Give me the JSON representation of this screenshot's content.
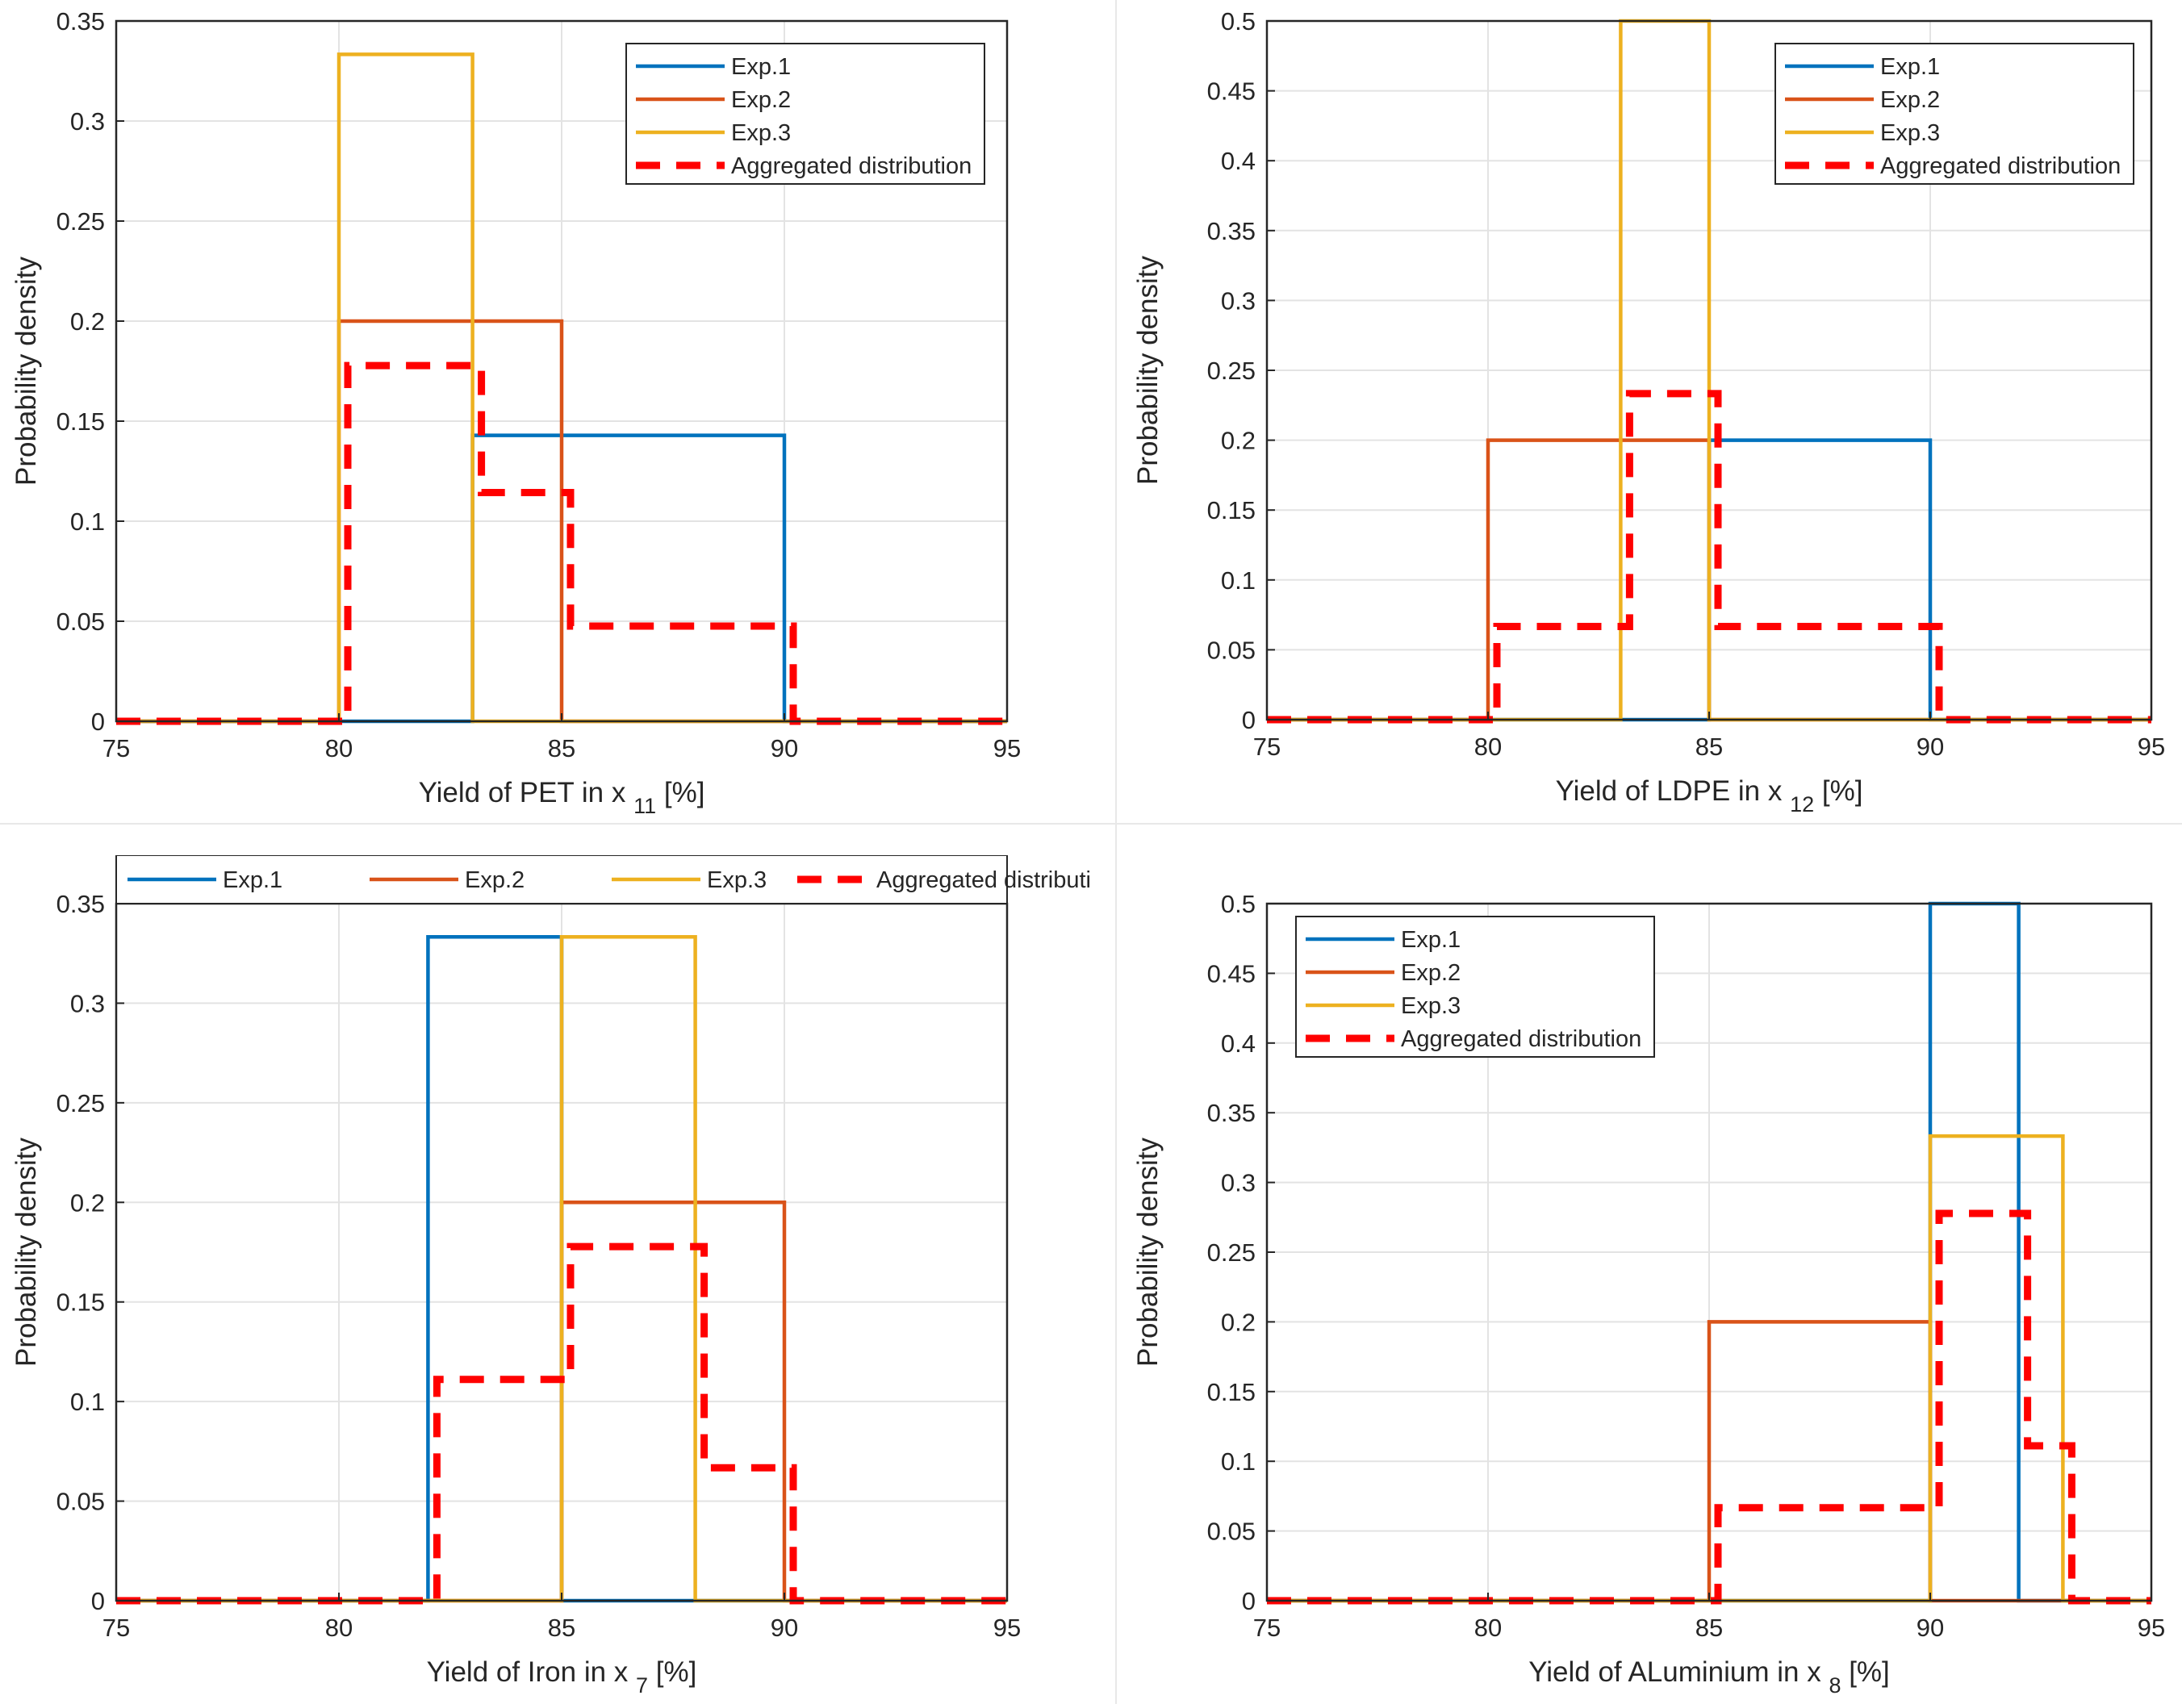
{
  "chart_data": [
    {
      "type": "line",
      "xlabel": "Yield of PET in x",
      "xlabel_sub": "11",
      "xlabel_unit": "[%]",
      "ylabel": "Probability density",
      "xlim": [
        75,
        95
      ],
      "ylim": [
        0,
        0.35
      ],
      "xticks": [
        75,
        80,
        85,
        90,
        95
      ],
      "yticks": [
        0,
        0.05,
        0.1,
        0.15,
        0.2,
        0.25,
        0.3,
        0.35
      ],
      "grid": true,
      "legend_position": "top-right",
      "legend_layout": "vertical",
      "series": [
        {
          "name": "Exp.1",
          "color": "#0072BD",
          "dashed": false,
          "points": [
            [
              75,
              0
            ],
            [
              83,
              0
            ],
            [
              83,
              0.1429
            ],
            [
              90,
              0.1429
            ],
            [
              90,
              0
            ],
            [
              95,
              0
            ]
          ]
        },
        {
          "name": "Exp.2",
          "color": "#D95319",
          "dashed": false,
          "points": [
            [
              75,
              0
            ],
            [
              80,
              0
            ],
            [
              80,
              0.2
            ],
            [
              85,
              0.2
            ],
            [
              85,
              0
            ],
            [
              95,
              0
            ]
          ]
        },
        {
          "name": "Exp.3",
          "color": "#EDB120",
          "dashed": false,
          "points": [
            [
              75,
              0
            ],
            [
              80,
              0
            ],
            [
              80,
              0.3333
            ],
            [
              83,
              0.3333
            ],
            [
              83,
              0
            ],
            [
              95,
              0
            ]
          ]
        },
        {
          "name": "Aggregated distribution",
          "color": "#FF0000",
          "dashed": true,
          "points": [
            [
              75,
              0
            ],
            [
              80.2,
              0
            ],
            [
              80.2,
              0.1778
            ],
            [
              83.2,
              0.1778
            ],
            [
              83.2,
              0.1143
            ],
            [
              85.2,
              0.1143
            ],
            [
              85.2,
              0.0476
            ],
            [
              90.2,
              0.0476
            ],
            [
              90.2,
              0
            ],
            [
              95,
              0
            ]
          ]
        }
      ]
    },
    {
      "type": "line",
      "xlabel": "Yield of LDPE in x",
      "xlabel_sub": "12",
      "xlabel_unit": "[%]",
      "ylabel": "Probability density",
      "xlim": [
        75,
        95
      ],
      "ylim": [
        0,
        0.5
      ],
      "xticks": [
        75,
        80,
        85,
        90,
        95
      ],
      "yticks": [
        0,
        0.05,
        0.1,
        0.15,
        0.2,
        0.25,
        0.3,
        0.35,
        0.4,
        0.45,
        0.5
      ],
      "grid": true,
      "legend_position": "top-right",
      "legend_layout": "vertical",
      "series": [
        {
          "name": "Exp.1",
          "color": "#0072BD",
          "dashed": false,
          "points": [
            [
              75,
              0
            ],
            [
              85,
              0
            ],
            [
              85,
              0.2
            ],
            [
              90,
              0.2
            ],
            [
              90,
              0
            ],
            [
              95,
              0
            ]
          ]
        },
        {
          "name": "Exp.2",
          "color": "#D95319",
          "dashed": false,
          "points": [
            [
              75,
              0
            ],
            [
              80,
              0
            ],
            [
              80,
              0.2
            ],
            [
              85,
              0.2
            ],
            [
              85,
              0
            ],
            [
              95,
              0
            ]
          ]
        },
        {
          "name": "Exp.3",
          "color": "#EDB120",
          "dashed": false,
          "points": [
            [
              75,
              0
            ],
            [
              83,
              0
            ],
            [
              83,
              0.5
            ],
            [
              85,
              0.5
            ],
            [
              85,
              0
            ],
            [
              95,
              0
            ]
          ]
        },
        {
          "name": "Aggregated distribution",
          "color": "#FF0000",
          "dashed": true,
          "points": [
            [
              75,
              0
            ],
            [
              80.2,
              0
            ],
            [
              80.2,
              0.0667
            ],
            [
              83.2,
              0.0667
            ],
            [
              83.2,
              0.2333
            ],
            [
              85.2,
              0.2333
            ],
            [
              85.2,
              0.0667
            ],
            [
              90.2,
              0.0667
            ],
            [
              90.2,
              0
            ],
            [
              95,
              0
            ]
          ]
        }
      ]
    },
    {
      "type": "line",
      "xlabel": "Yield of Iron in x",
      "xlabel_sub": "7",
      "xlabel_unit": "[%]",
      "ylabel": "Probability density",
      "xlim": [
        75,
        95
      ],
      "ylim": [
        0,
        0.35
      ],
      "xticks": [
        75,
        80,
        85,
        90,
        95
      ],
      "yticks": [
        0,
        0.05,
        0.1,
        0.15,
        0.2,
        0.25,
        0.3,
        0.35
      ],
      "grid": true,
      "legend_position": "top",
      "legend_layout": "horizontal",
      "series": [
        {
          "name": "Exp.1",
          "color": "#0072BD",
          "dashed": false,
          "points": [
            [
              75,
              0
            ],
            [
              82,
              0
            ],
            [
              82,
              0.3333
            ],
            [
              85,
              0.3333
            ],
            [
              85,
              0
            ],
            [
              95,
              0
            ]
          ]
        },
        {
          "name": "Exp.2",
          "color": "#D95319",
          "dashed": false,
          "points": [
            [
              75,
              0
            ],
            [
              85,
              0
            ],
            [
              85,
              0.2
            ],
            [
              90,
              0.2
            ],
            [
              90,
              0
            ],
            [
              95,
              0
            ]
          ]
        },
        {
          "name": "Exp.3",
          "color": "#EDB120",
          "dashed": false,
          "points": [
            [
              75,
              0
            ],
            [
              85,
              0
            ],
            [
              85,
              0.3333
            ],
            [
              88,
              0.3333
            ],
            [
              88,
              0
            ],
            [
              95,
              0
            ]
          ]
        },
        {
          "name": "Aggregated distribution",
          "color": "#FF0000",
          "dashed": true,
          "points": [
            [
              75,
              0
            ],
            [
              82.2,
              0
            ],
            [
              82.2,
              0.1111
            ],
            [
              85.2,
              0.1111
            ],
            [
              85.2,
              0.1778
            ],
            [
              88.2,
              0.1778
            ],
            [
              88.2,
              0.0667
            ],
            [
              90.2,
              0.0667
            ],
            [
              90.2,
              0
            ],
            [
              95,
              0
            ]
          ]
        }
      ]
    },
    {
      "type": "line",
      "xlabel": "Yield of ALuminium in x",
      "xlabel_sub": "8",
      "xlabel_unit": "[%]",
      "ylabel": "Probability density",
      "xlim": [
        75,
        95
      ],
      "ylim": [
        0,
        0.5
      ],
      "xticks": [
        75,
        80,
        85,
        90,
        95
      ],
      "yticks": [
        0,
        0.05,
        0.1,
        0.15,
        0.2,
        0.25,
        0.3,
        0.35,
        0.4,
        0.45,
        0.5
      ],
      "grid": true,
      "legend_position": "top-left",
      "legend_layout": "vertical",
      "series": [
        {
          "name": "Exp.1",
          "color": "#0072BD",
          "dashed": false,
          "points": [
            [
              75,
              0
            ],
            [
              90,
              0
            ],
            [
              90,
              0.5
            ],
            [
              92,
              0.5
            ],
            [
              92,
              0
            ],
            [
              95,
              0
            ]
          ]
        },
        {
          "name": "Exp.2",
          "color": "#D95319",
          "dashed": false,
          "points": [
            [
              75,
              0
            ],
            [
              85,
              0
            ],
            [
              85,
              0.2
            ],
            [
              90,
              0.2
            ],
            [
              90,
              0
            ],
            [
              95,
              0
            ]
          ]
        },
        {
          "name": "Exp.3",
          "color": "#EDB120",
          "dashed": false,
          "points": [
            [
              75,
              0
            ],
            [
              90,
              0
            ],
            [
              90,
              0.3333
            ],
            [
              93,
              0.3333
            ],
            [
              93,
              0
            ],
            [
              95,
              0
            ]
          ]
        },
        {
          "name": "Aggregated distribution",
          "color": "#FF0000",
          "dashed": true,
          "points": [
            [
              75,
              0
            ],
            [
              85.2,
              0
            ],
            [
              85.2,
              0.0667
            ],
            [
              90.2,
              0.0667
            ],
            [
              90.2,
              0.2778
            ],
            [
              92.2,
              0.2778
            ],
            [
              92.2,
              0.1111
            ],
            [
              93.2,
              0.1111
            ],
            [
              93.2,
              0
            ],
            [
              95,
              0
            ]
          ]
        }
      ]
    }
  ]
}
